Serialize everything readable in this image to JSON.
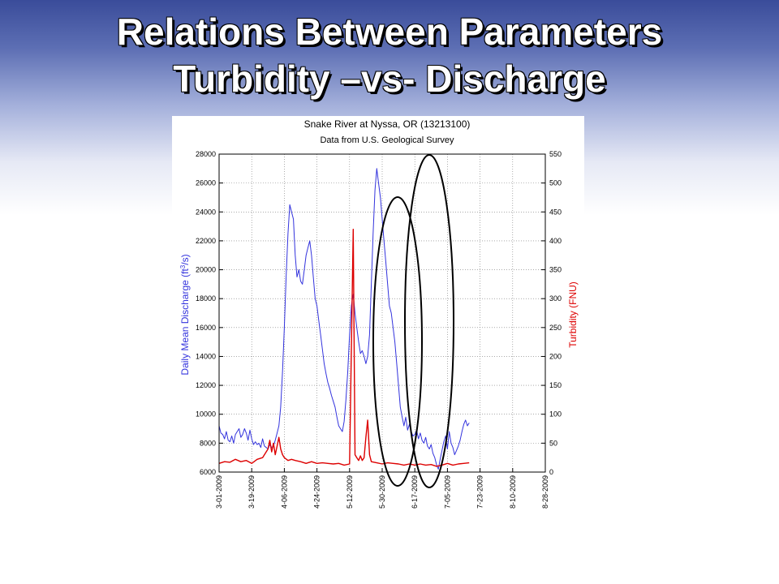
{
  "slide": {
    "title_line1": "Relations Between Parameters",
    "title_line2": "Turbidity –vs- Discharge"
  },
  "chart_data": {
    "type": "line",
    "title": "Snake River at Nyssa, OR (13213100)",
    "subtitle": "Data from U.S. Geological Survey",
    "xlabel": "",
    "x_ticks": [
      "3-01-2009",
      "3-19-2009",
      "4-06-2009",
      "4-24-2009",
      "5-12-2009",
      "5-30-2009",
      "6-17-2009",
      "7-05-2009",
      "7-23-2009",
      "8-10-2009",
      "8-28-2009"
    ],
    "x_range_days": [
      0,
      180
    ],
    "y_left": {
      "label": "Daily Mean Discharge (ft",
      "label_sup": "3",
      "label_end": "/s)",
      "ylim": [
        6000,
        28000
      ],
      "ticks": [
        "6000",
        "8000",
        "10000",
        "12000",
        "14000",
        "16000",
        "18000",
        "20000",
        "22000",
        "24000",
        "26000",
        "28000"
      ],
      "color": "#3333dd"
    },
    "y_right": {
      "label": "Turbidity (FNU)",
      "ylim": [
        0,
        550
      ],
      "ticks": [
        "0",
        "50",
        "100",
        "150",
        "200",
        "250",
        "300",
        "350",
        "400",
        "450",
        "500",
        "550"
      ],
      "color": "#dd0000"
    },
    "grid": true,
    "series": [
      {
        "axis": "left",
        "color": "#3333dd",
        "points": [
          [
            0,
            9200
          ],
          [
            1,
            8700
          ],
          [
            2,
            8600
          ],
          [
            3,
            8300
          ],
          [
            4,
            8800
          ],
          [
            5,
            8200
          ],
          [
            6,
            8100
          ],
          [
            7,
            8500
          ],
          [
            8,
            8000
          ],
          [
            9,
            8600
          ],
          [
            10,
            8800
          ],
          [
            11,
            9000
          ],
          [
            12,
            8400
          ],
          [
            13,
            8600
          ],
          [
            14,
            9000
          ],
          [
            15,
            8700
          ],
          [
            16,
            8200
          ],
          [
            17,
            8900
          ],
          [
            18,
            8300
          ],
          [
            19,
            7900
          ],
          [
            20,
            8100
          ],
          [
            21,
            7900
          ],
          [
            22,
            8000
          ],
          [
            23,
            7700
          ],
          [
            24,
            8300
          ],
          [
            25,
            7800
          ],
          [
            26,
            7700
          ],
          [
            27,
            7600
          ],
          [
            28,
            7900
          ],
          [
            29,
            7700
          ],
          [
            30,
            7800
          ],
          [
            31,
            8200
          ],
          [
            32,
            8700
          ],
          [
            33,
            9200
          ],
          [
            34,
            10500
          ],
          [
            35,
            13000
          ],
          [
            36,
            16000
          ],
          [
            37,
            19500
          ],
          [
            38,
            22500
          ],
          [
            39,
            24500
          ],
          [
            40,
            24000
          ],
          [
            41,
            23500
          ],
          [
            42,
            21000
          ],
          [
            43,
            19500
          ],
          [
            44,
            20000
          ],
          [
            45,
            19200
          ],
          [
            46,
            19000
          ],
          [
            47,
            20000
          ],
          [
            48,
            21000
          ],
          [
            49,
            21500
          ],
          [
            50,
            22000
          ],
          [
            51,
            21000
          ],
          [
            52,
            19500
          ],
          [
            53,
            18000
          ],
          [
            54,
            17500
          ],
          [
            55,
            16500
          ],
          [
            56,
            15500
          ],
          [
            57,
            14500
          ],
          [
            58,
            13500
          ],
          [
            59,
            12800
          ],
          [
            60,
            12200
          ],
          [
            61,
            11800
          ],
          [
            62,
            11300
          ],
          [
            63,
            10900
          ],
          [
            64,
            10500
          ],
          [
            65,
            9800
          ],
          [
            66,
            9200
          ],
          [
            67,
            9000
          ],
          [
            68,
            8800
          ],
          [
            69,
            9500
          ],
          [
            70,
            11000
          ],
          [
            71,
            13000
          ],
          [
            72,
            15500
          ],
          [
            73,
            17500
          ],
          [
            74,
            18300
          ],
          [
            75,
            17000
          ],
          [
            76,
            16000
          ],
          [
            77,
            15000
          ],
          [
            78,
            14200
          ],
          [
            79,
            14400
          ],
          [
            80,
            14000
          ],
          [
            81,
            13500
          ],
          [
            82,
            14000
          ],
          [
            83,
            15500
          ],
          [
            84,
            19000
          ],
          [
            85,
            22500
          ],
          [
            86,
            25500
          ],
          [
            87,
            27000
          ],
          [
            88,
            26000
          ],
          [
            89,
            25000
          ],
          [
            90,
            23500
          ],
          [
            91,
            22000
          ],
          [
            92,
            20500
          ],
          [
            93,
            19000
          ],
          [
            94,
            17500
          ],
          [
            95,
            17000
          ],
          [
            96,
            16000
          ],
          [
            97,
            15000
          ],
          [
            98,
            13500
          ],
          [
            99,
            12000
          ],
          [
            100,
            10500
          ],
          [
            101,
            9800
          ],
          [
            102,
            9200
          ],
          [
            103,
            9800
          ],
          [
            104,
            8900
          ],
          [
            105,
            9300
          ],
          [
            106,
            8800
          ],
          [
            107,
            8500
          ],
          [
            108,
            8600
          ],
          [
            109,
            8900
          ],
          [
            110,
            8300
          ],
          [
            111,
            8700
          ],
          [
            112,
            8200
          ],
          [
            113,
            8000
          ],
          [
            114,
            8400
          ],
          [
            115,
            7800
          ],
          [
            116,
            7600
          ],
          [
            117,
            7900
          ],
          [
            118,
            7300
          ],
          [
            119,
            7000
          ],
          [
            120,
            6500
          ],
          [
            121,
            6200
          ],
          [
            122,
            6900
          ],
          [
            123,
            7500
          ],
          [
            124,
            8100
          ],
          [
            125,
            8500
          ],
          [
            126,
            7600
          ],
          [
            127,
            8800
          ],
          [
            128,
            8000
          ],
          [
            129,
            7700
          ],
          [
            130,
            7200
          ],
          [
            131,
            7500
          ],
          [
            132,
            7800
          ],
          [
            133,
            8200
          ],
          [
            134,
            8800
          ],
          [
            135,
            9300
          ],
          [
            136,
            9600
          ],
          [
            137,
            9200
          ],
          [
            138,
            9400
          ]
        ]
      },
      {
        "axis": "right",
        "color": "#dd0000",
        "points": [
          [
            0,
            15
          ],
          [
            3,
            18
          ],
          [
            6,
            17
          ],
          [
            9,
            22
          ],
          [
            12,
            18
          ],
          [
            15,
            20
          ],
          [
            18,
            15
          ],
          [
            21,
            22
          ],
          [
            24,
            25
          ],
          [
            27,
            40
          ],
          [
            28,
            55
          ],
          [
            29,
            35
          ],
          [
            30,
            50
          ],
          [
            31,
            30
          ],
          [
            32,
            45
          ],
          [
            33,
            60
          ],
          [
            34,
            40
          ],
          [
            35,
            30
          ],
          [
            36,
            25
          ],
          [
            38,
            20
          ],
          [
            40,
            22
          ],
          [
            42,
            20
          ],
          [
            45,
            18
          ],
          [
            48,
            15
          ],
          [
            51,
            18
          ],
          [
            54,
            15
          ],
          [
            57,
            16
          ],
          [
            60,
            15
          ],
          [
            63,
            14
          ],
          [
            66,
            15
          ],
          [
            69,
            12
          ],
          [
            72,
            14
          ],
          [
            74,
            420
          ],
          [
            75,
            30
          ],
          [
            76,
            25
          ],
          [
            77,
            20
          ],
          [
            78,
            28
          ],
          [
            79,
            20
          ],
          [
            80,
            25
          ],
          [
            81,
            60
          ],
          [
            82,
            90
          ],
          [
            83,
            30
          ],
          [
            84,
            18
          ],
          [
            87,
            16
          ],
          [
            90,
            14
          ],
          [
            93,
            16
          ],
          [
            96,
            15
          ],
          [
            99,
            14
          ],
          [
            102,
            12
          ],
          [
            105,
            14
          ],
          [
            108,
            12
          ],
          [
            111,
            14
          ],
          [
            114,
            12
          ],
          [
            117,
            13
          ],
          [
            120,
            10
          ],
          [
            123,
            12
          ],
          [
            126,
            15
          ],
          [
            129,
            12
          ],
          [
            132,
            14
          ],
          [
            135,
            15
          ],
          [
            138,
            16
          ]
        ]
      }
    ],
    "annotations": [
      "ellipse around first discharge/turbidity peak",
      "ellipse around main discharge peak"
    ]
  }
}
